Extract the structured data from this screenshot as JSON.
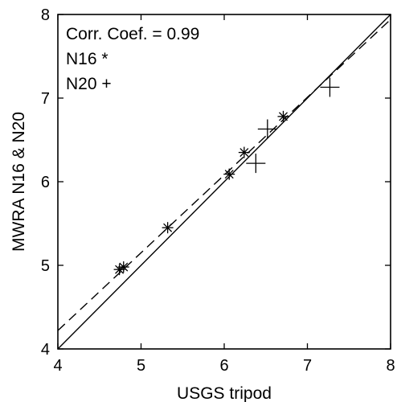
{
  "chart_data": {
    "type": "scatter",
    "xlabel": "USGS tripod",
    "ylabel": "MWRA N16 & N20",
    "xlim": [
      4,
      8
    ],
    "ylim": [
      4,
      8
    ],
    "x_ticks": [
      4,
      5,
      6,
      7,
      8
    ],
    "y_ticks": [
      4,
      5,
      6,
      7,
      8
    ],
    "grid": false,
    "annotations": [
      {
        "text": "Corr. Coef. = 0.99"
      },
      {
        "text": "N16 *"
      },
      {
        "text": "N20 +"
      }
    ],
    "series": [
      {
        "name": "N16",
        "marker": "*",
        "points": [
          {
            "x": 4.74,
            "y": 4.95
          },
          {
            "x": 4.79,
            "y": 4.98
          },
          {
            "x": 5.32,
            "y": 5.45
          },
          {
            "x": 6.06,
            "y": 6.09
          },
          {
            "x": 6.24,
            "y": 6.35
          },
          {
            "x": 6.71,
            "y": 6.78
          }
        ]
      },
      {
        "name": "N20",
        "marker": "+",
        "points": [
          {
            "x": 6.38,
            "y": 6.22
          },
          {
            "x": 6.52,
            "y": 6.63
          },
          {
            "x": 7.27,
            "y": 7.13
          }
        ]
      }
    ],
    "lines": [
      {
        "style": "solid",
        "from": [
          4,
          4
        ],
        "to": [
          8,
          8
        ]
      },
      {
        "style": "dashed",
        "from": [
          4,
          4.22
        ],
        "to": [
          8,
          7.94
        ]
      }
    ],
    "colors": {
      "ink": "#000000",
      "background": "#ffffff"
    }
  }
}
